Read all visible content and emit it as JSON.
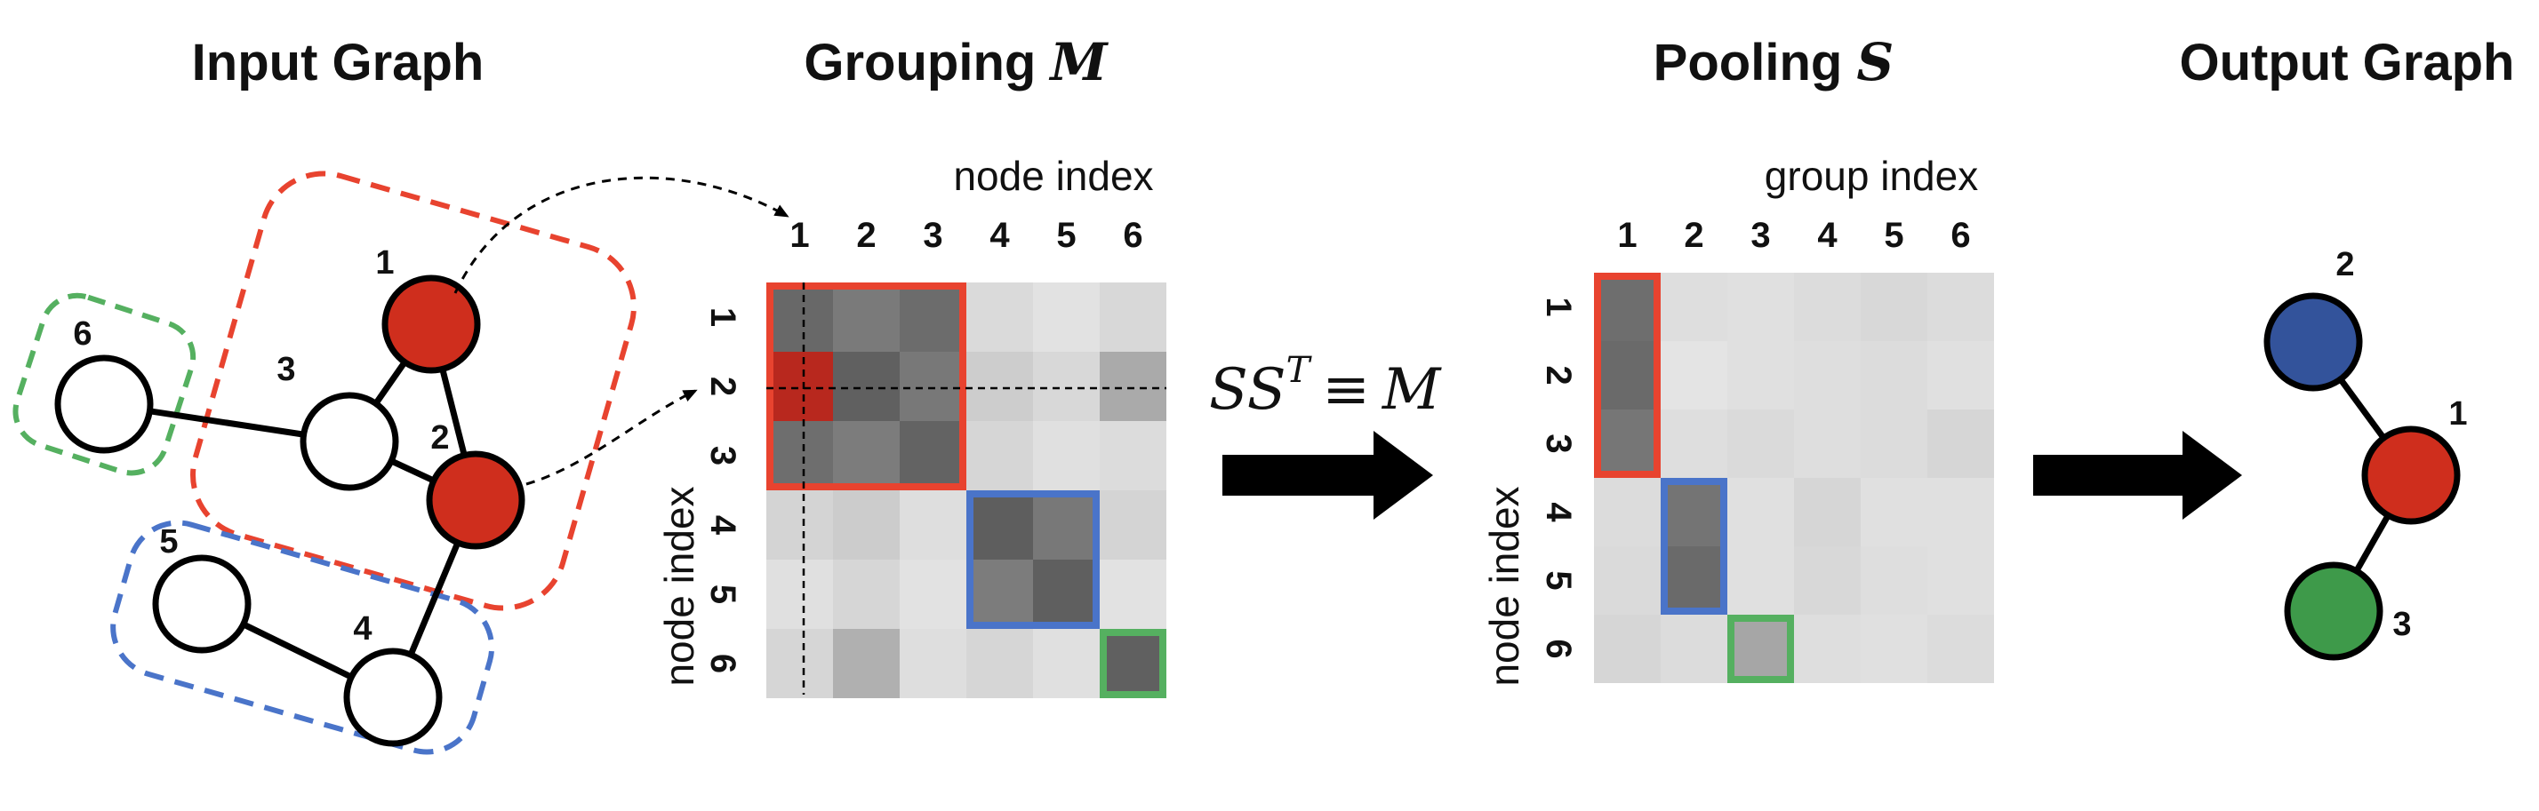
{
  "titles": {
    "input": "Input Graph",
    "grouping_prefix": "Grouping ",
    "grouping_symbol": "M",
    "pooling_prefix": "Pooling ",
    "pooling_symbol": "S",
    "output": "Output Graph"
  },
  "equation": {
    "base": "SS",
    "superscript": "T",
    "operator": "≡",
    "rhs": "M"
  },
  "grouping_matrix": {
    "x_axis_title": "node index",
    "y_axis_title": "node index",
    "col_labels": [
      "1",
      "2",
      "3",
      "4",
      "5",
      "6"
    ],
    "row_labels": [
      "1",
      "2",
      "3",
      "4",
      "5",
      "6"
    ],
    "cell_shades": [
      [
        "#686868",
        "#7a7a7a",
        "#6c6c6c",
        "#dadada",
        "#e2e2e2",
        "#d8d8d8"
      ],
      [
        "#b8281e",
        "#606060",
        "#787878",
        "#cdcdcd",
        "#d8d8d8",
        "#aaaaaa"
      ],
      [
        "#6e6e6e",
        "#7c7c7c",
        "#636363",
        "#d6d6d6",
        "#e0e0e0",
        "#dcdcdc"
      ],
      [
        "#d4d4d4",
        "#cccccc",
        "#dedede",
        "#5e5e5e",
        "#787878",
        "#d4d4d4"
      ],
      [
        "#e0e0e0",
        "#d6d6d6",
        "#e2e2e2",
        "#7c7c7c",
        "#5f5f5f",
        "#e2e2e2"
      ],
      [
        "#d6d6d6",
        "#b0b0b0",
        "#dedede",
        "#d6d6d6",
        "#e0e0e0",
        "#606060"
      ]
    ],
    "group_boxes": [
      {
        "group": 1,
        "rows": [
          1,
          3
        ],
        "cols": [
          1,
          3
        ],
        "color": "#e8432f"
      },
      {
        "group": 2,
        "rows": [
          4,
          5
        ],
        "cols": [
          4,
          5
        ],
        "color": "#4a74c9"
      },
      {
        "group": 3,
        "rows": [
          6,
          6
        ],
        "cols": [
          6,
          6
        ],
        "color": "#55b060"
      }
    ]
  },
  "pooling_matrix": {
    "x_axis_title": "group index",
    "y_axis_title": "node index",
    "col_labels": [
      "1",
      "2",
      "3",
      "4",
      "5",
      "6"
    ],
    "row_labels": [
      "1",
      "2",
      "3",
      "4",
      "5",
      "6"
    ],
    "cell_shades": [
      [
        "#6e6e6e",
        "#dedede",
        "#e0e0e0",
        "#dcdcdc",
        "#d8d8d8",
        "#dcdcdc"
      ],
      [
        "#6a6a6a",
        "#e4e4e4",
        "#e0e0e0",
        "#dedede",
        "#dcdcdc",
        "#e0e0e0"
      ],
      [
        "#767676",
        "#dedede",
        "#dadada",
        "#dedede",
        "#dcdcdc",
        "#d6d6d6"
      ],
      [
        "#dcdcdc",
        "#747474",
        "#e0e0e0",
        "#d6d6d6",
        "#e0e0e0",
        "#e0e0e0"
      ],
      [
        "#dadada",
        "#6a6a6a",
        "#e0e0e0",
        "#d8d8d8",
        "#dedede",
        "#e0e0e0"
      ],
      [
        "#d6d6d6",
        "#dcdcdc",
        "#a6a6a6",
        "#dedede",
        "#e0e0e0",
        "#dcdcdc"
      ]
    ],
    "group_boxes": [
      {
        "group": 1,
        "rows": [
          1,
          3
        ],
        "cols": [
          1,
          1
        ],
        "color": "#e8432f"
      },
      {
        "group": 2,
        "rows": [
          4,
          5
        ],
        "cols": [
          2,
          2
        ],
        "color": "#4a74c9"
      },
      {
        "group": 3,
        "rows": [
          6,
          6
        ],
        "cols": [
          3,
          3
        ],
        "color": "#55b060"
      }
    ]
  },
  "input_graph": {
    "nodes": [
      {
        "id": "1",
        "fill": "#cf2e1d"
      },
      {
        "id": "2",
        "fill": "#cf2e1d"
      },
      {
        "id": "3",
        "fill": "#ffffff"
      },
      {
        "id": "4",
        "fill": "#ffffff"
      },
      {
        "id": "5",
        "fill": "#ffffff"
      },
      {
        "id": "6",
        "fill": "#ffffff"
      }
    ],
    "edges": [
      [
        "1",
        "3"
      ],
      [
        "1",
        "2"
      ],
      [
        "2",
        "3"
      ],
      [
        "3",
        "6"
      ],
      [
        "2",
        "4"
      ],
      [
        "4",
        "5"
      ]
    ],
    "groups": [
      {
        "members": [
          "1",
          "2",
          "3"
        ],
        "color": "#e8432f"
      },
      {
        "members": [
          "4",
          "5"
        ],
        "color": "#4a74c9"
      },
      {
        "members": [
          "6"
        ],
        "color": "#55b060"
      }
    ]
  },
  "output_graph": {
    "nodes": [
      {
        "id": "1",
        "fill": "#cf2e1d"
      },
      {
        "id": "2",
        "fill": "#33539b"
      },
      {
        "id": "3",
        "fill": "#3e9a4a"
      }
    ],
    "edges": [
      [
        "2",
        "1"
      ],
      [
        "1",
        "3"
      ]
    ]
  },
  "colors": {
    "stroke": "#000000",
    "background": "#ffffff"
  }
}
